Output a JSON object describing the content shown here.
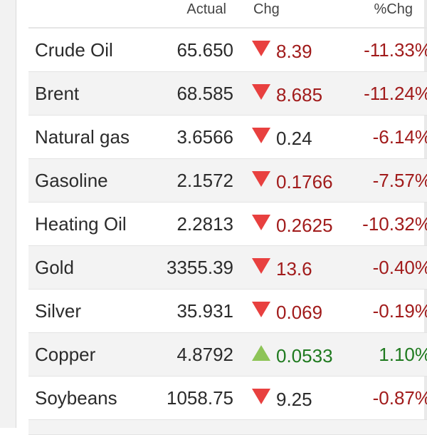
{
  "header": {
    "actual": "Actual",
    "chg": "Chg",
    "pct_chg": "%Chg"
  },
  "colors": {
    "negative_text": "#a11b1b",
    "positive_text": "#1f7a1f",
    "down_arrow": "#e8403f",
    "up_arrow": "#8dc457"
  },
  "rows": [
    {
      "name": "Crude Oil",
      "actual": "65.650",
      "direction": "down",
      "chg": "8.39",
      "pct_chg": "-11.33%"
    },
    {
      "name": "Brent",
      "actual": "68.585",
      "direction": "down",
      "chg": "8.685",
      "pct_chg": "-11.24%"
    },
    {
      "name": "Natural gas",
      "actual": "3.6566",
      "direction": "down",
      "chg": "0.24",
      "pct_chg": "-6.14%"
    },
    {
      "name": "Gasoline",
      "actual": "2.1572",
      "direction": "down",
      "chg": "0.1766",
      "pct_chg": "-7.57%"
    },
    {
      "name": "Heating Oil",
      "actual": "2.2813",
      "direction": "down",
      "chg": "0.2625",
      "pct_chg": "-10.32%"
    },
    {
      "name": "Gold",
      "actual": "3355.39",
      "direction": "down",
      "chg": "13.6",
      "pct_chg": "-0.40%"
    },
    {
      "name": "Silver",
      "actual": "35.931",
      "direction": "down",
      "chg": "0.069",
      "pct_chg": "-0.19%"
    },
    {
      "name": "Copper",
      "actual": "4.8792",
      "direction": "up",
      "chg": "0.0533",
      "pct_chg": "1.10%"
    },
    {
      "name": "Soybeans",
      "actual": "1058.75",
      "direction": "down",
      "chg": "9.25",
      "pct_chg": "-0.87%"
    }
  ]
}
